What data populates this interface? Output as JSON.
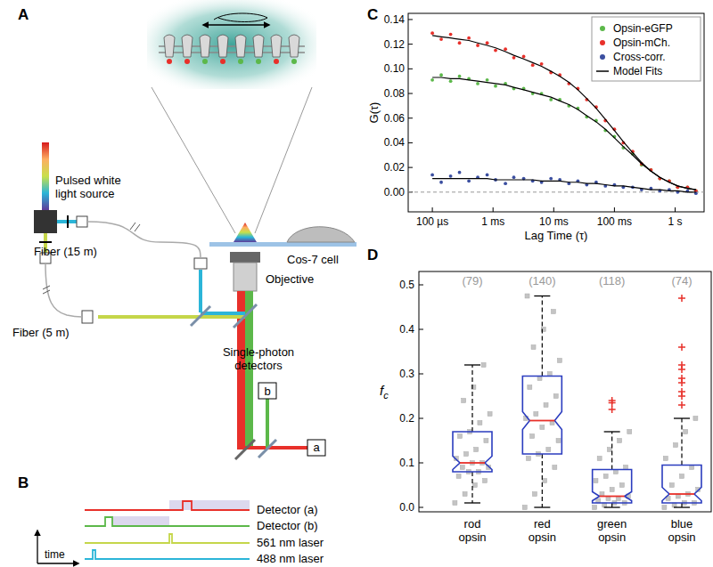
{
  "diagram": {
    "panel_a": {
      "label": "A",
      "source": [
        "Pulsed white",
        "light source"
      ],
      "fiber_long": "Fiber (15 m)",
      "fiber_short": "Fiber (5 m)",
      "objective": "Objective",
      "cell": "Cos-7 cell",
      "detectors": [
        "Single-photon",
        "detectors"
      ],
      "detector_a": "a",
      "detector_b": "b"
    },
    "panel_b": {
      "label": "B",
      "rows": [
        {
          "label": "Detector (a)",
          "color": "#e8302a"
        },
        {
          "label": "Detector (b)",
          "color": "#5cb84a"
        },
        {
          "label": "561 nm laser",
          "color": "#c5d64a"
        },
        {
          "label": "488 nm laser",
          "color": "#2bb5d8"
        }
      ],
      "axis_label": "time"
    }
  },
  "chart_data": [
    {
      "panel": "C",
      "type": "scatter",
      "xlabel": "Lag Time (τ)",
      "ylabel": "G(τ)",
      "log": "x",
      "grid": false,
      "legend": "upper right",
      "fit_name": "Model Fits",
      "reference_line": 0,
      "x": [
        0.0001,
        0.00014,
        0.0002,
        0.00028,
        0.0004,
        0.00056,
        0.0008,
        0.0011,
        0.0016,
        0.0022,
        0.0032,
        0.0045,
        0.0063,
        0.009,
        0.0126,
        0.0178,
        0.025,
        0.035,
        0.05,
        0.071,
        0.1,
        0.14,
        0.2,
        0.28,
        0.4,
        0.56,
        0.8,
        1.1,
        1.6,
        2.2
      ],
      "xlim": [
        4e-05,
        3
      ],
      "xticks": [
        {
          "value": 0.0001,
          "label": "100 µs"
        },
        {
          "value": 0.001,
          "label": "1 ms"
        },
        {
          "value": 0.01,
          "label": "10 ms"
        },
        {
          "value": 0.1,
          "label": "100 ms"
        },
        {
          "value": 1,
          "label": "1 s"
        }
      ],
      "ylim": [
        -0.016,
        0.145
      ],
      "yticks": [
        {
          "value": 0,
          "label": "0.00"
        },
        0.02,
        0.04,
        0.06,
        0.08,
        {
          "value": 0.1,
          "label": "0.10"
        },
        0.12,
        0.14
      ],
      "series": [
        {
          "name": "Opsin-eGFP",
          "color": "#5cb84a",
          "marker": "circle",
          "values": [
            0.091,
            0.095,
            0.09,
            0.094,
            0.092,
            0.088,
            0.091,
            0.086,
            0.088,
            0.084,
            0.084,
            0.08,
            0.08,
            0.075,
            0.075,
            0.07,
            0.068,
            0.061,
            0.058,
            0.05,
            0.045,
            0.036,
            0.031,
            0.022,
            0.018,
            0.011,
            0.009,
            0.004,
            0.004,
            0.001
          ],
          "fit": [
            0.093,
            0.093,
            0.092,
            0.092,
            0.091,
            0.09,
            0.089,
            0.088,
            0.087,
            0.085,
            0.083,
            0.081,
            0.079,
            0.077,
            0.074,
            0.071,
            0.067,
            0.062,
            0.057,
            0.051,
            0.044,
            0.037,
            0.03,
            0.023,
            0.017,
            0.012,
            0.008,
            0.005,
            0.003,
            0.002
          ]
        },
        {
          "name": "Opsin-mCh.",
          "color": "#e8302a",
          "marker": "circle",
          "values": [
            0.129,
            0.124,
            0.128,
            0.121,
            0.125,
            0.119,
            0.121,
            0.115,
            0.116,
            0.109,
            0.11,
            0.103,
            0.104,
            0.097,
            0.095,
            0.088,
            0.084,
            0.075,
            0.069,
            0.058,
            0.051,
            0.04,
            0.033,
            0.023,
            0.018,
            0.011,
            0.009,
            0.004,
            0.004,
            0.001
          ],
          "fit": [
            0.127,
            0.126,
            0.125,
            0.124,
            0.123,
            0.121,
            0.119,
            0.117,
            0.114,
            0.111,
            0.108,
            0.105,
            0.102,
            0.098,
            0.094,
            0.089,
            0.083,
            0.076,
            0.068,
            0.059,
            0.05,
            0.041,
            0.032,
            0.024,
            0.017,
            0.012,
            0.008,
            0.005,
            0.003,
            0.002
          ]
        },
        {
          "name": "Cross-corr.",
          "color": "#3b4fa0",
          "marker": "circle",
          "values": [
            0.014,
            0.008,
            0.013,
            0.016,
            0.009,
            0.012,
            0.014,
            0.01,
            0.007,
            0.012,
            0.011,
            0.009,
            0.008,
            0.011,
            0.01,
            0.007,
            0.009,
            0.006,
            0.008,
            0.005,
            0.006,
            0.004,
            0.004,
            0.002,
            0.003,
            0.001,
            0.002,
            0,
            0.001,
            -0.001
          ],
          "fit": [
            0.011,
            0.011,
            0.011,
            0.011,
            0.011,
            0.011,
            0.011,
            0.01,
            0.01,
            0.01,
            0.01,
            0.01,
            0.009,
            0.009,
            0.009,
            0.008,
            0.008,
            0.007,
            0.007,
            0.006,
            0.005,
            0.005,
            0.004,
            0.003,
            0.002,
            0.002,
            0.001,
            0.001,
            0,
            0
          ]
        }
      ]
    },
    {
      "panel": "D",
      "type": "box",
      "ylabel": "f",
      "ylabel_subscript": "c",
      "color": "#2b3dbf",
      "categories": [
        "rod opsin",
        "red opsin",
        "green opsin",
        "blue opsin"
      ],
      "counts": [
        79,
        140,
        118,
        74
      ],
      "count_labels": [
        "(79)",
        "(140)",
        "(118)",
        "(74)"
      ],
      "ylim": [
        -0.01,
        0.53
      ],
      "yticks": [
        {
          "value": 0,
          "label": "0.0"
        },
        0.1,
        0.2,
        0.3,
        0.4,
        0.5
      ],
      "boxes": [
        {
          "whisker_low": 0.01,
          "q1": 0.08,
          "median": 0.1,
          "q3": 0.17,
          "whisker_high": 0.32,
          "notch_low": 0.085,
          "notch_high": 0.115,
          "outliers": [],
          "points": [
            0.01,
            0.03,
            0.05,
            0.06,
            0.07,
            0.08,
            0.08,
            0.09,
            0.09,
            0.1,
            0.1,
            0.11,
            0.12,
            0.13,
            0.15,
            0.16,
            0.17,
            0.19,
            0.21,
            0.24,
            0.27,
            0.32
          ]
        },
        {
          "whisker_low": 0,
          "q1": 0.12,
          "median": 0.195,
          "q3": 0.295,
          "whisker_high": 0.475,
          "notch_low": 0.175,
          "notch_high": 0.215,
          "outliers": [],
          "points": [
            0,
            0.03,
            0.06,
            0.09,
            0.11,
            0.12,
            0.13,
            0.15,
            0.16,
            0.18,
            0.19,
            0.2,
            0.21,
            0.23,
            0.25,
            0.27,
            0.29,
            0.3,
            0.33,
            0.36,
            0.4,
            0.44,
            0.475
          ]
        },
        {
          "whisker_low": 0,
          "q1": 0.01,
          "median": 0.025,
          "q3": 0.085,
          "whisker_high": 0.17,
          "notch_low": 0.015,
          "notch_high": 0.035,
          "outliers": [
            0.22,
            0.235,
            0.24
          ],
          "points": [
            0,
            0.005,
            0.01,
            0.01,
            0.015,
            0.02,
            0.02,
            0.025,
            0.03,
            0.04,
            0.05,
            0.06,
            0.07,
            0.08,
            0.09,
            0.11,
            0.13,
            0.15,
            0.17
          ]
        },
        {
          "whisker_low": 0,
          "q1": 0.01,
          "median": 0.03,
          "q3": 0.095,
          "whisker_high": 0.2,
          "notch_low": 0.015,
          "notch_high": 0.045,
          "outliers": [
            0.23,
            0.25,
            0.26,
            0.28,
            0.29,
            0.31,
            0.32,
            0.36,
            0.47
          ],
          "points": [
            0,
            0.005,
            0.01,
            0.01,
            0.02,
            0.025,
            0.03,
            0.04,
            0.05,
            0.07,
            0.09,
            0.11,
            0.14,
            0.17,
            0.2
          ]
        }
      ]
    }
  ]
}
